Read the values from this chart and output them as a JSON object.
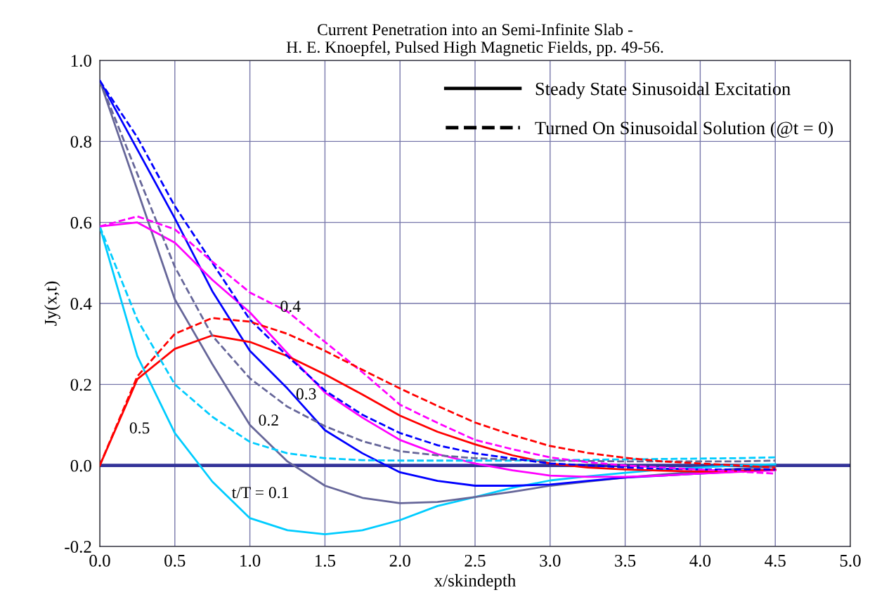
{
  "chart_data": {
    "type": "line",
    "title": "Current Penetration into an Semi-Infinite Slab -\nH. E. Knoepfel, Pulsed High Magnetic Fields, pp. 49-56.",
    "xlabel": "x/skindepth",
    "ylabel": "Jy(x,t)",
    "x": [
      0.0,
      0.25,
      0.5,
      0.75,
      1.0,
      1.25,
      1.5,
      1.75,
      2.0,
      2.25,
      2.5,
      2.75,
      3.0,
      3.25,
      3.5,
      3.75,
      4.0,
      4.25,
      4.5
    ],
    "series": [
      {
        "color": "#000000",
        "line_style": "solid",
        "name": "Steady State Sinusoidal Excitation",
        "values": [
          null,
          null,
          null,
          null,
          null,
          null,
          null,
          null,
          null,
          null,
          null,
          null,
          null,
          null,
          null,
          null,
          null,
          null,
          null
        ]
      },
      {
        "color": "#000000",
        "line_style": "dashed",
        "name": "Turned On Sinusoidal Solution (@t = 0)",
        "values": [
          null,
          null,
          null,
          null,
          null,
          null,
          null,
          null,
          null,
          null,
          null,
          null,
          null,
          null,
          null,
          null,
          null,
          null,
          null
        ]
      },
      {
        "color": "#00ccff",
        "line_style": "solid",
        "values": [
          0.59,
          0.27,
          0.08,
          -0.04,
          -0.13,
          -0.16,
          -0.17,
          -0.16,
          -0.135,
          -0.1,
          -0.078,
          -0.055,
          -0.037,
          -0.027,
          -0.018,
          -0.01,
          -0.005,
          0.0,
          0.003
        ]
      },
      {
        "color": "#00ccff",
        "line_style": "dashed",
        "values": [
          0.59,
          0.36,
          0.2,
          0.12,
          0.058,
          0.03,
          0.018,
          0.013,
          0.012,
          0.012,
          0.012,
          0.012,
          0.013,
          0.014,
          0.015,
          0.016,
          0.017,
          0.018,
          0.02
        ]
      },
      {
        "color": "#666699",
        "line_style": "solid",
        "values": [
          0.95,
          0.68,
          0.41,
          0.25,
          0.1,
          0.01,
          -0.05,
          -0.08,
          -0.093,
          -0.09,
          -0.078,
          -0.065,
          -0.05,
          -0.04,
          -0.03,
          -0.022,
          -0.015,
          -0.008,
          -0.003
        ]
      },
      {
        "color": "#666699",
        "line_style": "dashed",
        "values": [
          0.95,
          0.72,
          0.49,
          0.32,
          0.215,
          0.145,
          0.097,
          0.06,
          0.035,
          0.025,
          0.018,
          0.014,
          0.012,
          0.011,
          0.01,
          0.01,
          0.01,
          0.01,
          0.012
        ]
      },
      {
        "color": "#0000ff",
        "line_style": "solid",
        "values": [
          0.95,
          0.78,
          0.61,
          0.43,
          0.283,
          0.19,
          0.087,
          0.03,
          -0.017,
          -0.038,
          -0.05,
          -0.05,
          -0.047,
          -0.038,
          -0.03,
          -0.025,
          -0.02,
          -0.015,
          -0.01
        ]
      },
      {
        "color": "#0000ff",
        "line_style": "dashed",
        "values": [
          0.95,
          0.81,
          0.64,
          0.5,
          0.36,
          0.27,
          0.185,
          0.125,
          0.08,
          0.05,
          0.03,
          0.017,
          0.005,
          0.0,
          -0.005,
          -0.008,
          -0.01,
          -0.01,
          -0.01
        ]
      },
      {
        "color": "#ff00ff",
        "line_style": "solid",
        "values": [
          0.59,
          0.6,
          0.55,
          0.458,
          0.378,
          0.277,
          0.18,
          0.118,
          0.063,
          0.028,
          0.005,
          -0.012,
          -0.025,
          -0.028,
          -0.028,
          -0.025,
          -0.02,
          -0.016,
          -0.012
        ]
      },
      {
        "color": "#ff00ff",
        "line_style": "dashed",
        "values": [
          0.59,
          0.615,
          0.583,
          0.503,
          0.427,
          0.38,
          0.305,
          0.23,
          0.15,
          0.105,
          0.063,
          0.04,
          0.02,
          0.008,
          0.0,
          -0.005,
          -0.01,
          -0.015,
          -0.02
        ]
      },
      {
        "color": "#ff0000",
        "line_style": "solid",
        "values": [
          0.0,
          0.213,
          0.288,
          0.321,
          0.305,
          0.27,
          0.225,
          0.175,
          0.123,
          0.083,
          0.052,
          0.025,
          0.005,
          -0.005,
          -0.01,
          -0.013,
          -0.015,
          -0.013,
          -0.01
        ]
      },
      {
        "color": "#ff0000",
        "line_style": "dashed",
        "values": [
          0.0,
          0.22,
          0.325,
          0.364,
          0.355,
          0.325,
          0.283,
          0.236,
          0.19,
          0.147,
          0.106,
          0.075,
          0.048,
          0.031,
          0.019,
          0.01,
          0.005,
          0.0,
          -0.005
        ]
      }
    ],
    "annotations": [
      "t/T = 0.1",
      "0.2",
      "0.3",
      "0.4",
      "0.5"
    ],
    "xlim": [
      0.0,
      5.0
    ],
    "xticks": [
      {
        "value": 0,
        "label": "0.0"
      },
      0.5,
      {
        "value": 1,
        "label": "1.0"
      },
      1.5,
      {
        "value": 2,
        "label": "2.0"
      },
      2.5,
      {
        "value": 3,
        "label": "3.0"
      },
      3.5,
      {
        "value": 4,
        "label": "4.0"
      },
      4.5,
      {
        "value": 5,
        "label": "5.0"
      }
    ],
    "ylim": [
      -0.2,
      1.0
    ],
    "yticks": [
      -0.2,
      {
        "value": 0,
        "label": "0.0"
      },
      0.2,
      0.4,
      0.6,
      0.8,
      {
        "value": 1,
        "label": "1.0"
      }
    ],
    "ref_lines": [
      {
        "axis": "y",
        "value": 0.0,
        "color": "#333399"
      }
    ],
    "grid": true,
    "legend": "top right",
    "marker": "none"
  }
}
